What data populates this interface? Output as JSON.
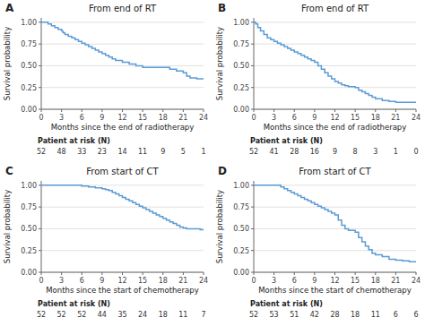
{
  "chart_data": [
    {
      "type": "step",
      "title": "From end of RT",
      "annotations": [
        "A"
      ],
      "x_label": "Months since the end of radiotherapy",
      "y_label": "Survival probability",
      "x": [
        0,
        0.5,
        1,
        1.5,
        2,
        2.5,
        3,
        3.2,
        3.5,
        4,
        4.5,
        5,
        5.5,
        6,
        6.5,
        7,
        7.5,
        8,
        8.5,
        9,
        9.5,
        10,
        10.5,
        11,
        12,
        13,
        14,
        15,
        15.5,
        16,
        17,
        18,
        19,
        20,
        21,
        21.5,
        22,
        23,
        24
      ],
      "values": [
        1.0,
        1.0,
        0.98,
        0.96,
        0.94,
        0.92,
        0.9,
        0.88,
        0.86,
        0.84,
        0.82,
        0.8,
        0.78,
        0.76,
        0.74,
        0.72,
        0.7,
        0.68,
        0.66,
        0.64,
        0.62,
        0.6,
        0.58,
        0.56,
        0.54,
        0.52,
        0.5,
        0.48,
        0.48,
        0.48,
        0.48,
        0.48,
        0.46,
        0.44,
        0.42,
        0.38,
        0.36,
        0.35,
        0.35
      ],
      "color": "#5b9bd5",
      "xlim": [
        0,
        24
      ],
      "ylim": [
        0,
        1.05
      ],
      "xticks": [
        0,
        3,
        6,
        9,
        12,
        15,
        18,
        21,
        24
      ],
      "yticks": [
        {
          "value": 0,
          "label": "0.00"
        },
        0.25,
        {
          "value": 0.5,
          "label": "0.50"
        },
        0.75,
        {
          "value": 1,
          "label": "1.00"
        }
      ],
      "grid": "y",
      "risk_table": {
        "title": "Patient at risk (N)",
        "x": [
          0,
          3,
          6,
          9,
          12,
          15,
          18,
          21,
          24
        ],
        "values": [
          52,
          48,
          33,
          23,
          14,
          11,
          9,
          5,
          1
        ]
      }
    },
    {
      "type": "step",
      "title": "From end of RT",
      "annotations": [
        "B"
      ],
      "x_label": "Months since the end of radiotherapy",
      "y_label": "Survival probability",
      "x": [
        0,
        0.3,
        0.6,
        1,
        1.5,
        2,
        2.5,
        3,
        3.5,
        4,
        4.5,
        5,
        5.5,
        6,
        6.5,
        7,
        7.5,
        8,
        8.5,
        9,
        9.5,
        10,
        10.5,
        11,
        11.5,
        12,
        12.5,
        13,
        13.5,
        14,
        15,
        15.5,
        16,
        16.5,
        17,
        17.5,
        18,
        19,
        20,
        21,
        22,
        23,
        24
      ],
      "values": [
        1.0,
        0.98,
        0.94,
        0.9,
        0.86,
        0.82,
        0.8,
        0.78,
        0.76,
        0.74,
        0.72,
        0.7,
        0.68,
        0.66,
        0.64,
        0.62,
        0.6,
        0.58,
        0.56,
        0.54,
        0.5,
        0.46,
        0.42,
        0.38,
        0.35,
        0.32,
        0.3,
        0.28,
        0.27,
        0.26,
        0.25,
        0.22,
        0.2,
        0.18,
        0.16,
        0.14,
        0.12,
        0.1,
        0.09,
        0.08,
        0.08,
        0.08,
        0.08
      ],
      "color": "#5b9bd5",
      "xlim": [
        0,
        24
      ],
      "ylim": [
        0,
        1.05
      ],
      "xticks": [
        0,
        3,
        6,
        9,
        12,
        15,
        18,
        21,
        24
      ],
      "yticks": [
        {
          "value": 0,
          "label": "0.00"
        },
        0.25,
        {
          "value": 0.5,
          "label": "0.50"
        },
        0.75,
        {
          "value": 1,
          "label": "1.00"
        }
      ],
      "grid": "y",
      "risk_table": {
        "title": "Patient at risk (N)",
        "x": [
          0,
          3,
          6,
          9,
          12,
          15,
          18,
          21,
          24
        ],
        "values": [
          52,
          41,
          28,
          16,
          9,
          8,
          3,
          1,
          0
        ]
      }
    },
    {
      "type": "step",
      "title": "From start of CT",
      "annotations": [
        "C"
      ],
      "x_label": "Months since the start of chemotherapy",
      "y_label": "Survival probability",
      "x": [
        0,
        5.5,
        6,
        7,
        8,
        9,
        9.5,
        10,
        10.5,
        11,
        11.5,
        12,
        12.5,
        13,
        13.5,
        14,
        14.5,
        15,
        15.5,
        16,
        16.5,
        17,
        17.5,
        18,
        18.5,
        19,
        19.5,
        20,
        20.5,
        21,
        21.5,
        22,
        22.5,
        23,
        23.5,
        24
      ],
      "values": [
        1.0,
        1.0,
        0.99,
        0.98,
        0.97,
        0.96,
        0.95,
        0.94,
        0.92,
        0.9,
        0.88,
        0.86,
        0.84,
        0.82,
        0.8,
        0.78,
        0.76,
        0.74,
        0.72,
        0.7,
        0.68,
        0.66,
        0.64,
        0.62,
        0.6,
        0.58,
        0.56,
        0.54,
        0.52,
        0.51,
        0.5,
        0.5,
        0.5,
        0.5,
        0.49,
        0.49
      ],
      "color": "#5b9bd5",
      "xlim": [
        0,
        24
      ],
      "ylim": [
        0,
        1.05
      ],
      "xticks": [
        0,
        3,
        6,
        9,
        12,
        15,
        18,
        21,
        24
      ],
      "yticks": [
        {
          "value": 0,
          "label": "0.00"
        },
        0.25,
        {
          "value": 0.5,
          "label": "0.50"
        },
        0.75,
        {
          "value": 1,
          "label": "1.00"
        }
      ],
      "grid": "y",
      "risk_table": {
        "title": "Patient at risk (N)",
        "x": [
          0,
          3,
          6,
          9,
          12,
          15,
          18,
          21,
          24
        ],
        "values": [
          52,
          52,
          52,
          44,
          35,
          24,
          18,
          11,
          7
        ]
      }
    },
    {
      "type": "step",
      "title": "From start of CT",
      "annotations": [
        "D"
      ],
      "x_label": "Months since the start of chemotherapy",
      "y_label": "Survival probability",
      "x": [
        0,
        3.5,
        4,
        4.5,
        5,
        5.5,
        6,
        6.5,
        7,
        7.5,
        8,
        8.5,
        9,
        9.5,
        10,
        10.5,
        11,
        11.5,
        12,
        12.5,
        13,
        13.5,
        14,
        15,
        15.5,
        16,
        16.5,
        17,
        17.5,
        18,
        19,
        20,
        21,
        22,
        23,
        24
      ],
      "values": [
        1.0,
        1.0,
        0.98,
        0.96,
        0.94,
        0.92,
        0.9,
        0.88,
        0.86,
        0.84,
        0.82,
        0.8,
        0.78,
        0.76,
        0.74,
        0.72,
        0.7,
        0.68,
        0.66,
        0.6,
        0.54,
        0.5,
        0.48,
        0.46,
        0.4,
        0.35,
        0.3,
        0.26,
        0.22,
        0.2,
        0.18,
        0.15,
        0.14,
        0.13,
        0.12,
        0.12
      ],
      "color": "#5b9bd5",
      "xlim": [
        0,
        24
      ],
      "ylim": [
        0,
        1.05
      ],
      "xticks": [
        0,
        3,
        6,
        9,
        12,
        15,
        18,
        21,
        24
      ],
      "yticks": [
        {
          "value": 0,
          "label": "0.00"
        },
        0.25,
        {
          "value": 0.5,
          "label": "0.50"
        },
        0.75,
        {
          "value": 1,
          "label": "1.00"
        }
      ],
      "grid": "y",
      "risk_table": {
        "title": "Patient at risk (N)",
        "x": [
          0,
          3,
          6,
          9,
          12,
          15,
          18,
          21,
          24
        ],
        "values": [
          52,
          53,
          51,
          42,
          28,
          18,
          11,
          6,
          6
        ]
      }
    }
  ]
}
